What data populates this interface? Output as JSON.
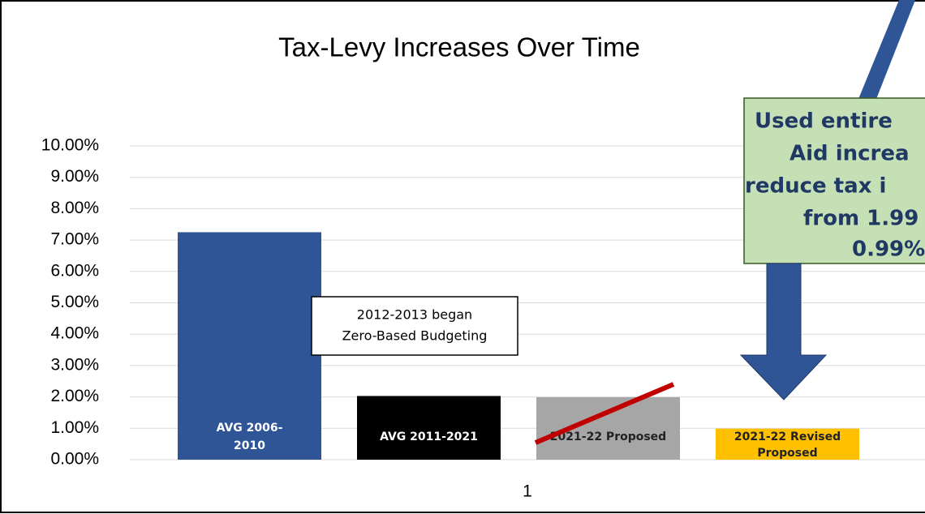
{
  "chart_data": {
    "type": "bar",
    "title": "Tax-Levy Increases Over Time",
    "categories": [
      "1"
    ],
    "series": [
      {
        "name": "AVG 2006-2010",
        "color": "#2f5597",
        "label_color": "#ffffff",
        "values": [
          7.25
        ]
      },
      {
        "name": "AVG 2011-2021",
        "color": "#000000",
        "label_color": "#ffffff",
        "values": [
          2.03
        ]
      },
      {
        "name": "2021-22 Proposed",
        "color": "#a6a6a6",
        "label_color": "#222222",
        "values": [
          1.99
        ]
      },
      {
        "name": "2021-22 Revised Proposed",
        "color": "#ffc000",
        "label_color": "#222222",
        "values": [
          0.99
        ]
      }
    ],
    "ylim": [
      0,
      10
    ],
    "yticks": [
      {
        "value": 0,
        "label": "0.00%"
      },
      {
        "value": 1,
        "label": "1.00%"
      },
      {
        "value": 2,
        "label": "2.00%"
      },
      {
        "value": 3,
        "label": "3.00%"
      },
      {
        "value": 4,
        "label": "4.00%"
      },
      {
        "value": 5,
        "label": "5.00%"
      },
      {
        "value": 6,
        "label": "6.00%"
      },
      {
        "value": 7,
        "label": "7.00%"
      },
      {
        "value": 8,
        "label": "8.00%"
      },
      {
        "value": 9,
        "label": "9.00%"
      },
      {
        "value": 10,
        "label": "10.00%"
      }
    ],
    "grid": true,
    "annotations": {
      "box": [
        "2012-2013 began",
        "Zero-Based Budgeting"
      ],
      "callout": [
        "Used entire",
        "Aid increa",
        "reduce tax i",
        "from 1.99",
        "0.99%"
      ]
    }
  }
}
